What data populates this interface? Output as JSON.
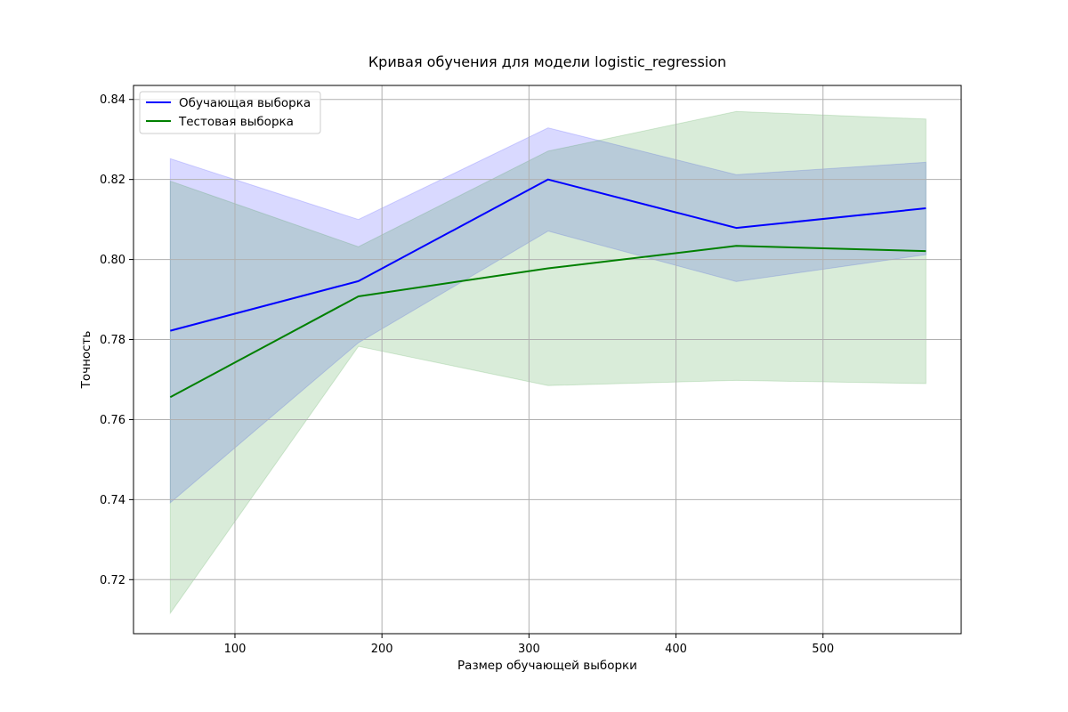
{
  "chart_data": {
    "type": "line",
    "title": "Кривая обучения для модели logistic_regression",
    "xlabel": "Размер обучающей выборки",
    "ylabel": "Точность",
    "xlim": [
      31,
      594
    ],
    "ylim": [
      0.7065,
      0.8435
    ],
    "x_ticks": [
      100,
      200,
      300,
      400,
      500
    ],
    "y_ticks": [
      0.72,
      0.74,
      0.76,
      0.78,
      0.8,
      0.82,
      0.84
    ],
    "grid": true,
    "legend_position": "upper-left",
    "x": [
      56,
      184,
      313,
      441,
      570
    ],
    "series": [
      {
        "name": "Обучающая выборка",
        "color": "#0000ff",
        "band_color": "#0000ff",
        "values": [
          0.7822,
          0.7946,
          0.82,
          0.8079,
          0.8128
        ],
        "upper": [
          0.8252,
          0.81,
          0.8329,
          0.8212,
          0.8243
        ],
        "lower": [
          0.7392,
          0.7792,
          0.8071,
          0.7945,
          0.8012
        ]
      },
      {
        "name": "Тестовая выборка",
        "color": "#008000",
        "band_color": "#008000",
        "values": [
          0.7656,
          0.7908,
          0.7978,
          0.8034,
          0.8021
        ],
        "upper": [
          0.8196,
          0.8032,
          0.8271,
          0.837,
          0.8351
        ],
        "lower": [
          0.7116,
          0.7783,
          0.7685,
          0.7698,
          0.769
        ]
      }
    ]
  }
}
